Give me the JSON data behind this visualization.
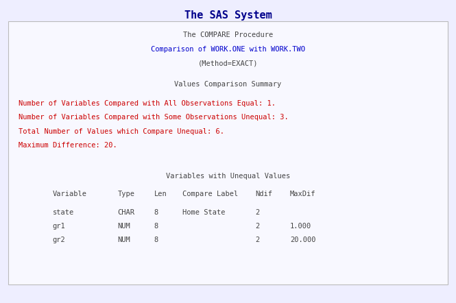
{
  "title": "The SAS System",
  "title_color": "#00008B",
  "title_fontsize": 11,
  "bg_color": "#eeeeff",
  "panel_bg_color": "#f8f8ff",
  "panel_border_color": "#bbbbbb",
  "mono_font": "DejaVu Sans Mono",
  "header_lines": [
    {
      "text": "The COMPARE Procedure",
      "color": "#444444"
    },
    {
      "text": "Comparison of WORK.ONE with WORK.TWO",
      "color": "#0000cc"
    },
    {
      "text": "(Method=EXACT)",
      "color": "#444444"
    }
  ],
  "section_title": "Values Comparison Summary",
  "section_title_color": "#444444",
  "summary_lines": [
    "Number of Variables Compared with All Observations Equal: 1.",
    "Number of Variables Compared with Some Observations Unequal: 3.",
    "Total Number of Values which Compare Unequal: 6.",
    "Maximum Difference: 20."
  ],
  "summary_color": "#cc0000",
  "table_title_text": "Variables with Unequal Values",
  "table_title_color": "#444444",
  "col_header_color": "#444444",
  "table_rows": [
    {
      "variable": "state",
      "type": "CHAR",
      "len": "8",
      "label": "Home State",
      "ndif": "2",
      "maxdif": ""
    },
    {
      "variable": "gr1",
      "type": "NUM",
      "len": "8",
      "label": "",
      "ndif": "2",
      "maxdif": "1.000"
    },
    {
      "variable": "gr2",
      "type": "NUM",
      "len": "8",
      "label": "",
      "ndif": "2",
      "maxdif": "20.000"
    }
  ],
  "table_row_color": "#444444",
  "fontsize": 7.5
}
